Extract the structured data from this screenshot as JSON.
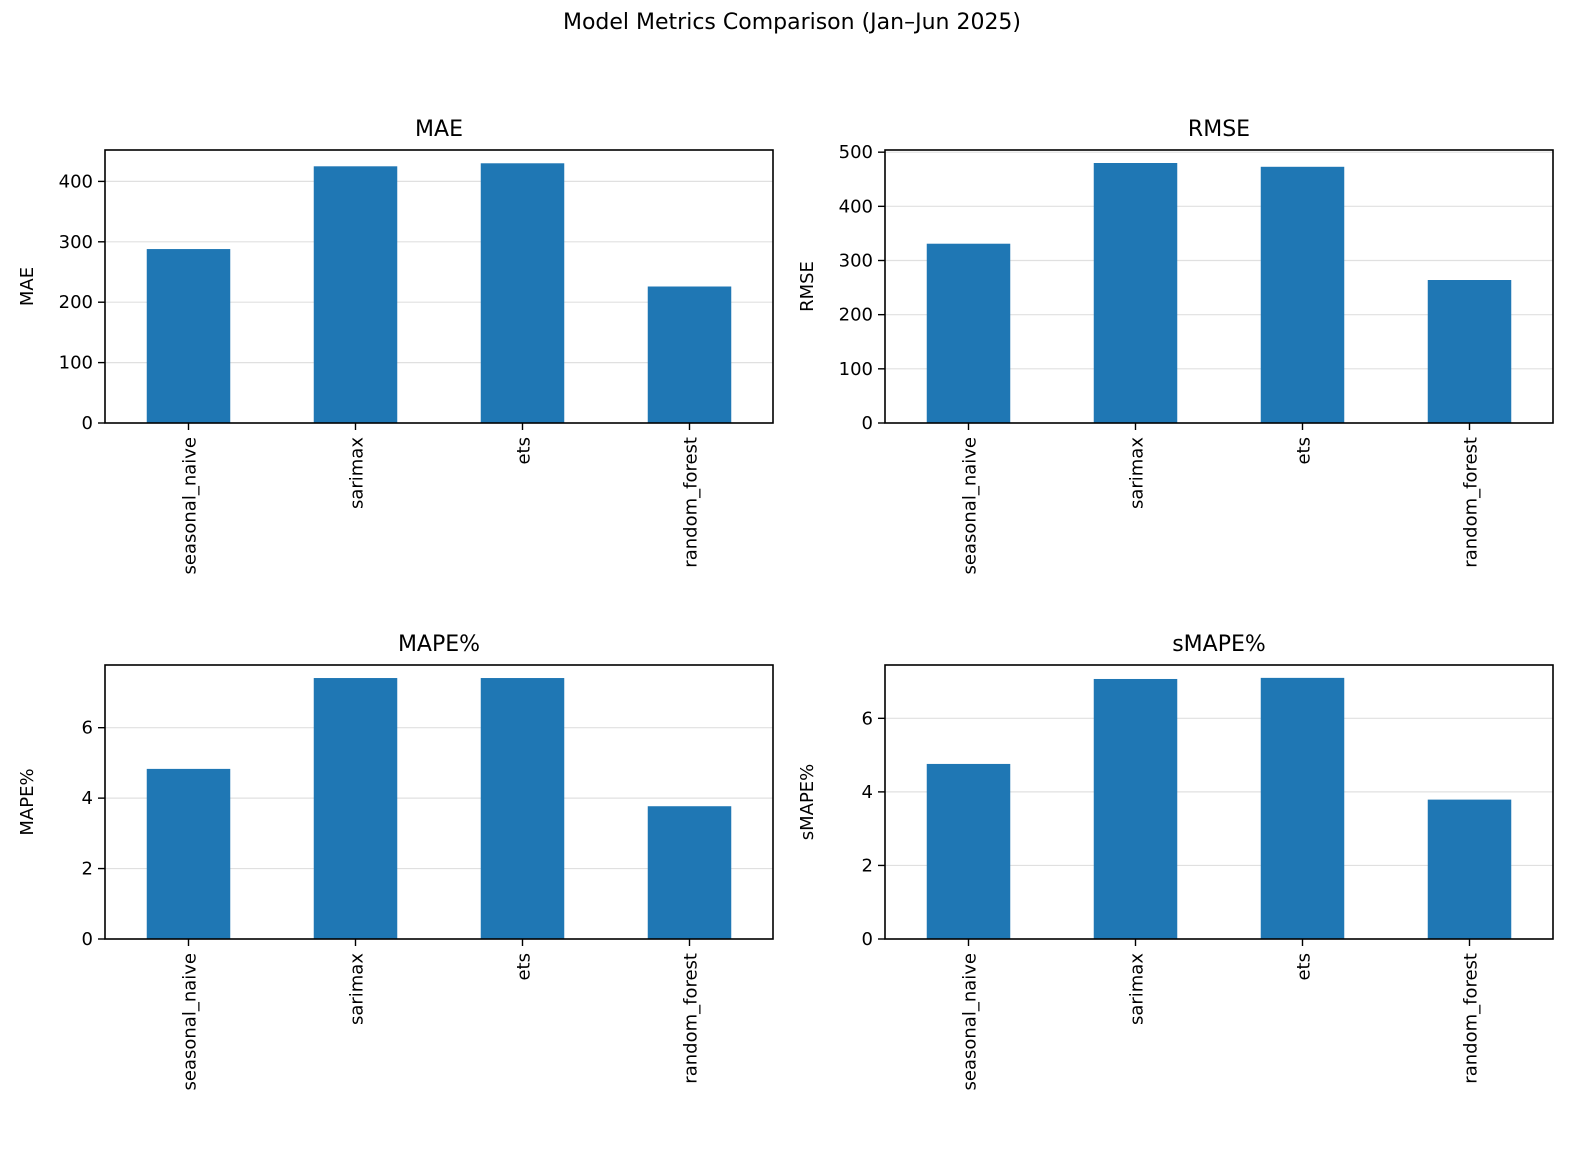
{
  "figure": {
    "title": "Model Metrics Comparison (Jan–Jun 2025)",
    "bar_color": "#1f77b4",
    "grid_color": "#e0e0e0"
  },
  "chart_data": [
    {
      "type": "bar",
      "title": "MAE",
      "xlabel": "",
      "ylabel": "MAE",
      "categories": [
        "seasonal_naive",
        "sarimax",
        "ets",
        "random_forest"
      ],
      "values": [
        288,
        425,
        430,
        226
      ],
      "ylim": [
        0,
        452
      ],
      "yticks": [
        0,
        100,
        200,
        300,
        400
      ],
      "grid": true,
      "grid_axis": "y"
    },
    {
      "type": "bar",
      "title": "RMSE",
      "xlabel": "",
      "ylabel": "RMSE",
      "categories": [
        "seasonal_naive",
        "sarimax",
        "ets",
        "random_forest"
      ],
      "values": [
        331,
        480,
        473,
        264
      ],
      "ylim": [
        0,
        504
      ],
      "yticks": [
        0,
        100,
        200,
        300,
        400,
        500
      ],
      "grid": true,
      "grid_axis": "y"
    },
    {
      "type": "bar",
      "title": "MAPE%",
      "xlabel": "",
      "ylabel": "MAPE%",
      "categories": [
        "seasonal_naive",
        "sarimax",
        "ets",
        "random_forest"
      ],
      "values": [
        4.83,
        7.41,
        7.41,
        3.77
      ],
      "ylim": [
        0,
        7.78
      ],
      "yticks": [
        0,
        2,
        4,
        6
      ],
      "grid": true,
      "grid_axis": "y"
    },
    {
      "type": "bar",
      "title": "sMAPE%",
      "xlabel": "",
      "ylabel": "sMAPE%",
      "categories": [
        "seasonal_naive",
        "sarimax",
        "ets",
        "random_forest"
      ],
      "values": [
        4.76,
        7.07,
        7.1,
        3.79
      ],
      "ylim": [
        0,
        7.45
      ],
      "yticks": [
        0,
        2,
        4,
        6
      ],
      "grid": true,
      "grid_axis": "y"
    }
  ]
}
